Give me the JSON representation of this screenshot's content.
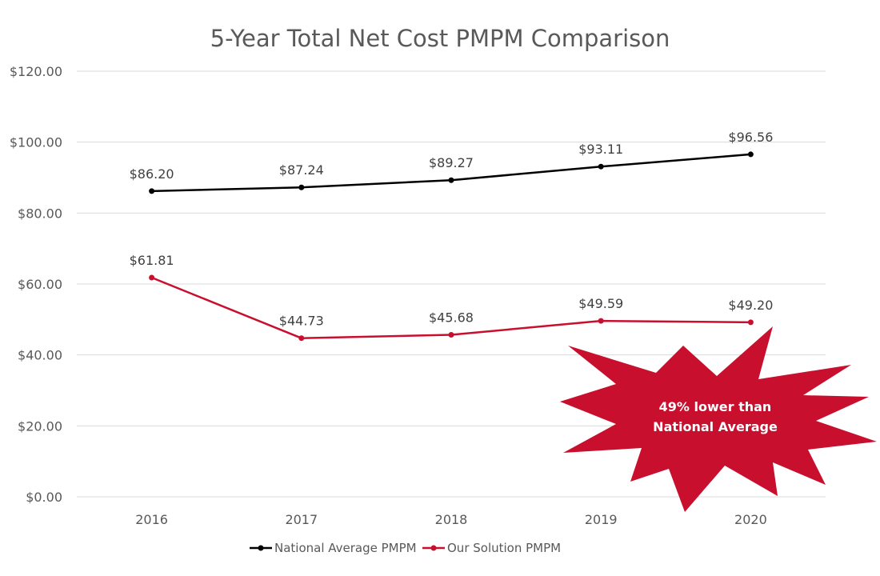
{
  "chart_data": {
    "type": "line",
    "title": "5-Year Total Net Cost PMPM Comparison",
    "xlabel": "",
    "ylabel": "",
    "categories": [
      "2016",
      "2017",
      "2018",
      "2019",
      "2020"
    ],
    "ylim": [
      0,
      120
    ],
    "y_ticks": [
      0,
      20,
      40,
      60,
      80,
      100,
      120
    ],
    "y_tick_labels": [
      "$0.00",
      "$20.00",
      "$40.00",
      "$60.00",
      "$80.00",
      "$100.00",
      "$120.00"
    ],
    "grid": true,
    "legend_position": "bottom",
    "series": [
      {
        "name": "National Average PMPM",
        "color": "#000000",
        "values": [
          86.2,
          87.24,
          89.27,
          93.11,
          96.56
        ],
        "labels": [
          "$86.20",
          "$87.24",
          "$89.27",
          "$93.11",
          "$96.56"
        ]
      },
      {
        "name": "Our Solution PMPM",
        "color": "#c8102e",
        "values": [
          61.81,
          44.73,
          45.68,
          49.59,
          49.2
        ],
        "labels": [
          "$61.81",
          "$44.73",
          "$45.68",
          "$49.59",
          "$49.20"
        ]
      }
    ],
    "annotation": {
      "lines": [
        "49% lower than",
        "National Average"
      ],
      "color": "#c8102e",
      "shape": "starburst"
    }
  }
}
